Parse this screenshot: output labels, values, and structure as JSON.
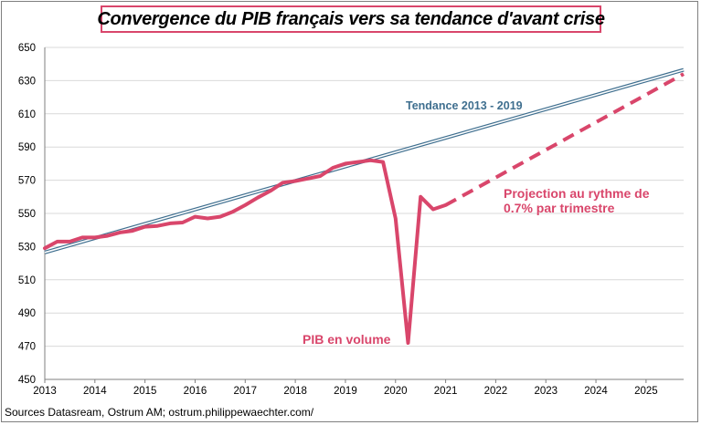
{
  "chart_data": {
    "type": "line",
    "title": "Convergence du PIB  français vers sa tendance d'avant crise",
    "xlabel": "",
    "ylabel": "",
    "x_ticks": [
      "2013",
      "2014",
      "2015",
      "2016",
      "2017",
      "2018",
      "2019",
      "2020",
      "2021",
      "2022",
      "2023",
      "2024",
      "2025"
    ],
    "y_ticks": [
      450,
      470,
      490,
      510,
      530,
      550,
      570,
      590,
      610,
      630,
      650
    ],
    "ylim": [
      450,
      650
    ],
    "xlim": [
      2013.0,
      2025.75
    ],
    "grid": true,
    "series": [
      {
        "name": "Tendance 2013 - 2019",
        "style": "double-line",
        "color": "#3f6f8f",
        "x": [
          2013.0,
          2025.75
        ],
        "values": [
          526.5,
          636.5
        ]
      },
      {
        "name": "PIB en volume",
        "style": "solid",
        "color": "#d9466b",
        "x": [
          2013.0,
          2013.25,
          2013.5,
          2013.75,
          2014.0,
          2014.25,
          2014.5,
          2014.75,
          2015.0,
          2015.25,
          2015.5,
          2015.75,
          2016.0,
          2016.25,
          2016.5,
          2016.75,
          2017.0,
          2017.25,
          2017.5,
          2017.75,
          2018.0,
          2018.25,
          2018.5,
          2018.75,
          2019.0,
          2019.25,
          2019.5,
          2019.75,
          2020.0,
          2020.25,
          2020.5,
          2020.75,
          2021.0
        ],
        "values": [
          529,
          533,
          533,
          535.5,
          535.5,
          536.5,
          538.5,
          539.5,
          542,
          542.5,
          544,
          544.5,
          548,
          547,
          548,
          551,
          555,
          559.5,
          563.5,
          568.5,
          569.5,
          571,
          572.5,
          577.5,
          580,
          581,
          582,
          581,
          547,
          472,
          560,
          552.5,
          555
        ]
      },
      {
        "name": "Projection au rythme de 0.7% par trimestre",
        "style": "dashed",
        "color": "#d9466b",
        "x": [
          2021.0,
          2025.75
        ],
        "values": [
          555,
          634
        ]
      }
    ],
    "annotations": {
      "trend_label": "Tendance 2013  - 2019",
      "gdp_label": "PIB en volume",
      "projection_line1": "Projection au rythme de",
      "projection_line2": "0.7% par trimestre"
    }
  },
  "source": "Sources Datasream, Ostrum AM;  ostrum.philippewaechter.com/",
  "colors": {
    "gdp": "#d9466b",
    "trend": "#3f6f8f",
    "grid": "#d9d9d9",
    "axis": "#7f7f7f"
  }
}
